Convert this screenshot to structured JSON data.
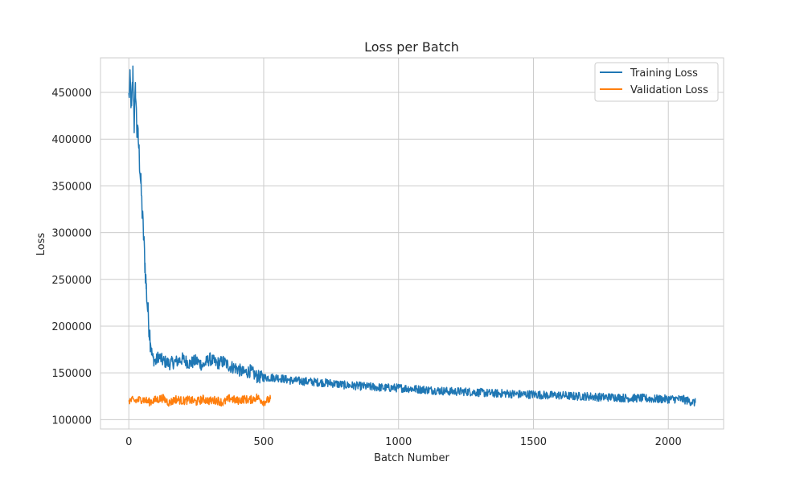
{
  "chart_data": {
    "type": "line",
    "title": "Loss per Batch",
    "xlabel": "Batch Number",
    "ylabel": "Loss",
    "xlim": [
      -105,
      2205
    ],
    "ylim": [
      90000,
      487000
    ],
    "x_ticks": [
      0,
      500,
      1000,
      1500,
      2000
    ],
    "y_ticks": [
      100000,
      150000,
      200000,
      250000,
      300000,
      350000,
      400000,
      450000
    ],
    "grid": true,
    "legend_position": "top-right",
    "series": [
      {
        "name": "Training Loss",
        "color": "#1f77b4",
        "x": [
          0,
          5,
          10,
          15,
          20,
          25,
          30,
          35,
          40,
          45,
          50,
          55,
          60,
          65,
          70,
          75,
          80,
          85,
          90,
          100,
          110,
          125,
          150,
          175,
          200,
          225,
          250,
          275,
          300,
          325,
          350,
          375,
          400,
          425,
          450,
          475,
          500,
          550,
          600,
          650,
          700,
          750,
          800,
          850,
          900,
          950,
          1000,
          1050,
          1100,
          1150,
          1200,
          1250,
          1300,
          1350,
          1400,
          1450,
          1500,
          1550,
          1600,
          1650,
          1700,
          1750,
          1800,
          1850,
          1900,
          1950,
          2000,
          2050,
          2100
        ],
        "y": [
          445000,
          462000,
          430000,
          470000,
          415000,
          455000,
          408000,
          400000,
          375000,
          350000,
          320000,
          295000,
          265000,
          240000,
          218000,
          200000,
          185000,
          172000,
          165000,
          162000,
          168000,
          163000,
          160000,
          162000,
          165000,
          160000,
          163000,
          158000,
          165000,
          160000,
          162000,
          157000,
          155000,
          150000,
          152000,
          146000,
          145000,
          145000,
          142000,
          141000,
          140000,
          139000,
          137000,
          136000,
          135000,
          134000,
          134000,
          133000,
          132000,
          131000,
          130000,
          130000,
          129000,
          128000,
          128000,
          127000,
          127000,
          126000,
          126000,
          125000,
          125000,
          124000,
          124000,
          123000,
          123000,
          122000,
          122000,
          122000,
          118000
        ]
      },
      {
        "name": "Validation Loss",
        "color": "#ff7f0e",
        "x": [
          0,
          25,
          50,
          75,
          100,
          125,
          150,
          175,
          200,
          225,
          250,
          275,
          300,
          325,
          350,
          375,
          400,
          425,
          450,
          475,
          500,
          525
        ],
        "y": [
          121000,
          120000,
          122000,
          119000,
          121000,
          123000,
          118000,
          122000,
          120000,
          121000,
          119000,
          122000,
          120000,
          121000,
          118000,
          123000,
          120000,
          122000,
          121000,
          124000,
          119000,
          122000
        ]
      }
    ]
  }
}
